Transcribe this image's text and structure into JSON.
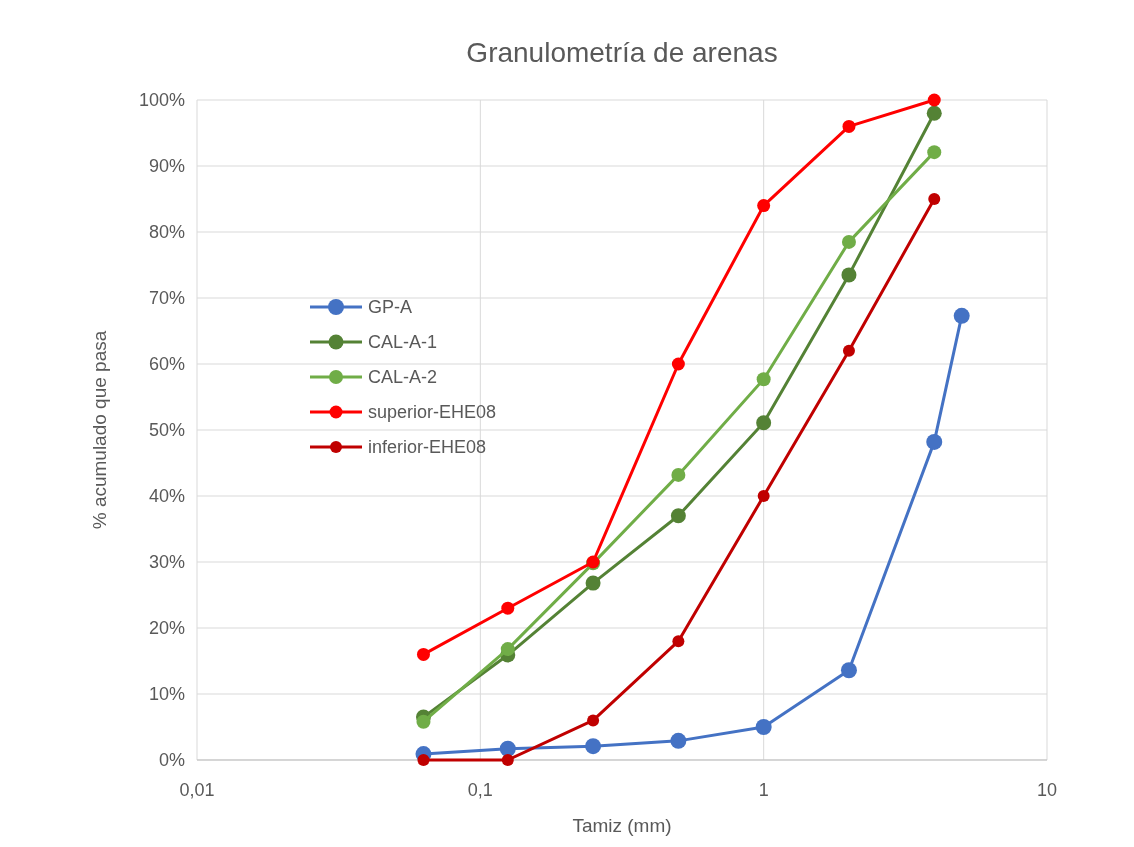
{
  "chart_data": {
    "type": "line",
    "title": "Granulometría de arenas",
    "xlabel": "Tamiz (mm)",
    "ylabel": "% acumulado que pasa",
    "log": "x",
    "xlim": [
      0.01,
      10
    ],
    "xticks": [
      {
        "value": 0.01,
        "label": "0,01"
      },
      {
        "value": 0.1,
        "label": "0,1"
      },
      1,
      10
    ],
    "ylim": [
      0,
      100
    ],
    "yticks": [
      {
        "value": 0,
        "label": "0%"
      },
      {
        "value": 10,
        "label": "10%"
      },
      {
        "value": 20,
        "label": "20%"
      },
      {
        "value": 30,
        "label": "30%"
      },
      {
        "value": 40,
        "label": "40%"
      },
      {
        "value": 50,
        "label": "50%"
      },
      {
        "value": 60,
        "label": "60%"
      },
      {
        "value": 70,
        "label": "70%"
      },
      {
        "value": 80,
        "label": "80%"
      },
      {
        "value": 90,
        "label": "90%"
      },
      {
        "value": 100,
        "label": "100%"
      }
    ],
    "grid": true,
    "legend": "left",
    "marker": "circle",
    "line_style": "solid",
    "series": [
      {
        "name": "GP-A",
        "color": "#4472c4",
        "x": [
          0.063,
          0.125,
          0.25,
          0.5,
          1,
          2,
          4,
          5
        ],
        "values": [
          0.9,
          1.7,
          2.1,
          2.9,
          5,
          13.6,
          48.2,
          67.3
        ]
      },
      {
        "name": "CAL-A-1",
        "color": "#548235",
        "x": [
          0.063,
          0.125,
          0.25,
          0.5,
          1,
          2,
          4
        ],
        "values": [
          6.5,
          15.9,
          26.8,
          37,
          51.1,
          73.5,
          98
        ]
      },
      {
        "name": "CAL-A-2",
        "color": "#70ad47",
        "x": [
          0.063,
          0.125,
          0.25,
          0.5,
          1,
          2,
          4
        ],
        "values": [
          5.8,
          16.8,
          29.8,
          43.2,
          57.7,
          78.5,
          92.1
        ]
      },
      {
        "name": "superior-EHE08",
        "color": "#ff0000",
        "x": [
          0.063,
          0.125,
          0.25,
          0.5,
          1,
          2,
          4
        ],
        "values": [
          16,
          23,
          30,
          60,
          84,
          96,
          100
        ]
      },
      {
        "name": "inferior-EHE08",
        "color": "#c00000",
        "x": [
          0.063,
          0.125,
          0.25,
          0.5,
          1,
          2,
          4
        ],
        "values": [
          0,
          0,
          6,
          18,
          40,
          62,
          85
        ]
      }
    ]
  }
}
